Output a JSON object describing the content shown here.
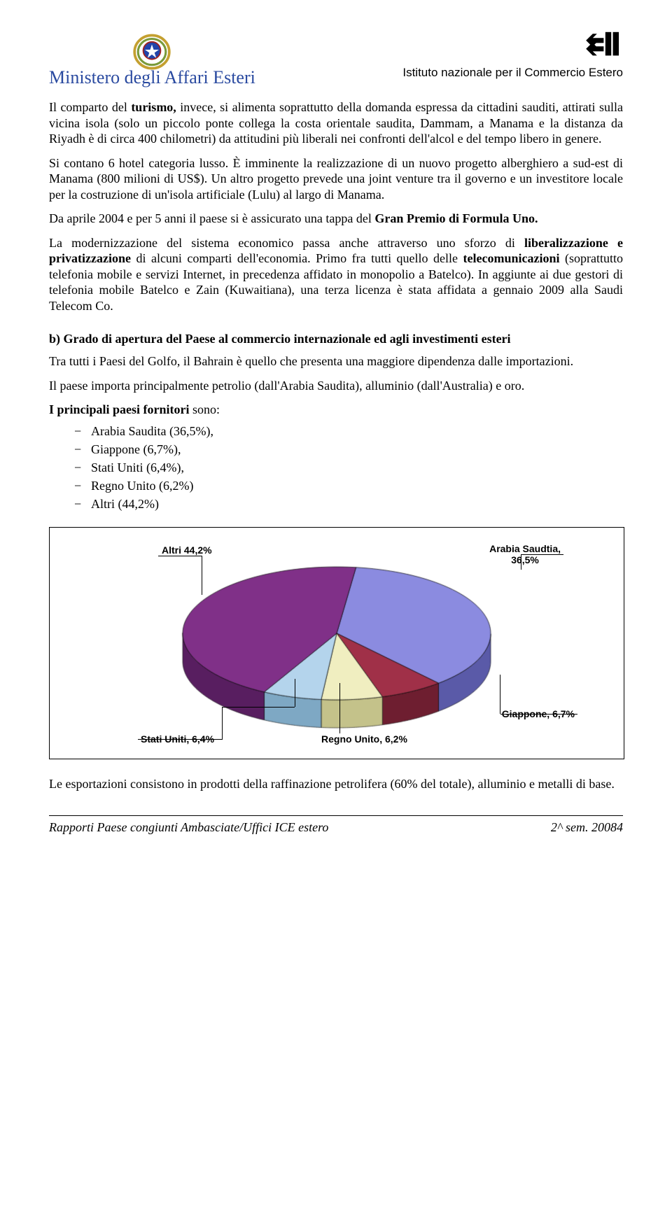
{
  "header": {
    "ministry_name": "Ministero degli Affari Esteri",
    "ice_title": "Istituto nazionale per il Commercio Estero"
  },
  "body": {
    "p1_a": "Il comparto del ",
    "p1_b": "turismo,",
    "p1_c": " invece, si alimenta soprattutto della domanda espressa da cittadini sauditi, attirati sulla vicina isola (solo un piccolo ponte collega la costa orientale saudita, Dammam, a Manama e la distanza da Riyadh è di circa 400 chilometri) da attitudini più liberali nei confronti dell'alcol e del tempo libero in genere.",
    "p2": "Si contano 6 hotel categoria lusso. È imminente la realizzazione di un nuovo progetto alberghiero a sud-est di Manama (800 milioni di US$). Un altro progetto prevede una joint venture tra il governo e un investitore locale per la costruzione di un'isola artificiale (Lulu) al largo di Manama.",
    "p3_a": "Da aprile 2004 e per 5 anni il paese si è assicurato una tappa del ",
    "p3_b": "Gran Premio di Formula Uno.",
    "p4_a": "La modernizzazione del sistema economico passa anche attraverso uno sforzo di ",
    "p4_b": "liberalizzazione e privatizzazione",
    "p4_c": " di alcuni comparti dell'economia. Primo fra tutti quello delle ",
    "p4_d": "telecomunicazioni",
    "p4_e": " (soprattutto telefonia mobile e servizi Internet, in precedenza affidato in monopolio a Batelco). In aggiunte ai due gestori di telefonia mobile Batelco e Zain (Kuwaitiana), una terza licenza è stata affidata a gennaio 2009 alla Saudi Telecom Co.",
    "section_b_title": "b)    Grado di apertura del Paese al commercio internazionale ed agli investimenti esteri",
    "p5": "Tra  tutti i Paesi del Golfo, il Bahrain è quello che presenta una maggiore dipendenza dalle importazioni.",
    "p6": "Il paese importa principalmente petrolio (dall'Arabia Saudita), alluminio (dall'Australia) e oro.",
    "p7_a": "I principali paesi fornitori",
    "p7_b": " sono:",
    "suppliers": [
      "Arabia Saudita (36,5%),",
      "Giappone (6,7%),",
      "Stati Uniti (6,4%),",
      "Regno Unito (6,2%)",
      "Altri (44,2%)"
    ],
    "p8": "Le esportazioni consistono in prodotti della raffinazione petrolifera (60% del totale), alluminio e metalli di base."
  },
  "chart": {
    "type": "pie",
    "is_3d": true,
    "labels": {
      "altri": "Altri 44,2%",
      "arabia_line1": "Arabia Saudtia,",
      "arabia_line2": "36,5%",
      "giappone": "Giappone, 6,7%",
      "regno_unito": "Regno Unito, 6,2%",
      "stati_uniti": "Stati Uniti, 6,4%"
    },
    "label_fontsize": 14,
    "label_fontweight": "bold",
    "label_fontfamily": "Arial",
    "border_color": "#000000",
    "background": "#ffffff",
    "slices": [
      {
        "name": "Arabia Saudita",
        "value": 36.5,
        "color_top": "#8b8be0",
        "color_side": "#5a5aa8"
      },
      {
        "name": "Giappone",
        "value": 6.7,
        "color_top": "#a03048",
        "color_side": "#6e1e30"
      },
      {
        "name": "Stati Uniti",
        "value": 6.4,
        "color_top": "#f0eec0",
        "color_side": "#c4c28a"
      },
      {
        "name": "Regno Unito",
        "value": 6.2,
        "color_top": "#b4d4ec",
        "color_side": "#7ea8c4"
      },
      {
        "name": "Altri",
        "value": 44.2,
        "color_top": "#803088",
        "color_side": "#581e60"
      }
    ]
  },
  "footer": {
    "left": "Rapporti Paese congiunti Ambasciate/Uffici ICE estero",
    "right": "2^ sem. 20084"
  },
  "emblem_colors": {
    "wreath": "#c4a030",
    "shield": "#2244aa",
    "star": "#ffffff"
  },
  "ice_logo_color": "#000000"
}
